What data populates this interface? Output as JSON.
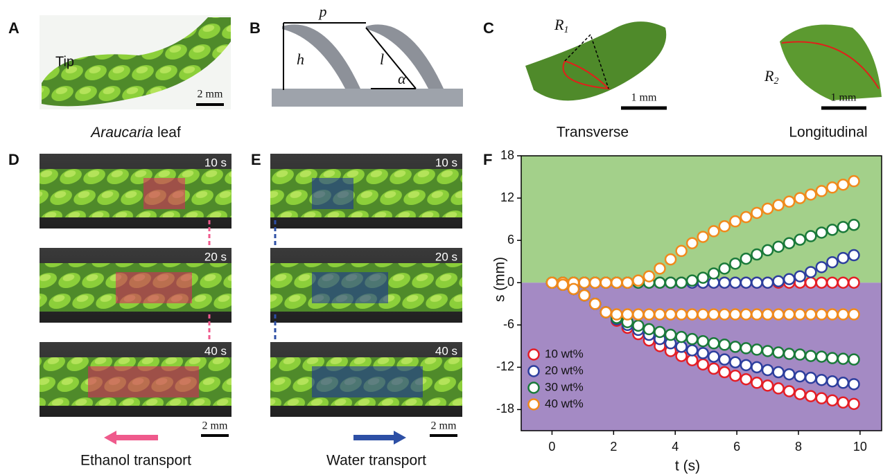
{
  "panels": {
    "A": {
      "letter": "A",
      "tip": "Tip",
      "scale": "2 mm",
      "caption_italic": "Araucaria",
      "caption": "leaf"
    },
    "B": {
      "letter": "B",
      "p": "p",
      "h": "h",
      "l": "l",
      "alpha": "α"
    },
    "C": {
      "letter": "C",
      "r1": "R",
      "r1_sub": "1",
      "r2": "R",
      "r2_sub": "2",
      "scale_left": "1 mm",
      "scale_right": "1 mm",
      "caption_left": "Transverse",
      "caption_right": "Longitudinal"
    },
    "D": {
      "letter": "D",
      "times": [
        "10 s",
        "20 s",
        "40 s"
      ],
      "scale": "2 mm",
      "caption": "Ethanol transport"
    },
    "E": {
      "letter": "E",
      "times": [
        "10 s",
        "20 s",
        "40 s"
      ],
      "scale": "2 mm",
      "caption": "Water transport"
    },
    "F": {
      "letter": "F"
    }
  },
  "chart_data": {
    "type": "scatter",
    "x_label": "t (s)",
    "y_label": "s (mm)",
    "xlim": [
      -1,
      10.7
    ],
    "ylim": [
      -21,
      18
    ],
    "xticks": [
      0,
      2,
      4,
      6,
      8,
      10
    ],
    "yticks": [
      -18,
      -12,
      -6,
      0,
      6,
      12,
      18
    ],
    "upper_color": "#a3d08a",
    "lower_color": "#a48ac4",
    "legend": "lower left",
    "x": [
      0,
      0.35,
      0.7,
      1.05,
      1.4,
      1.75,
      2.1,
      2.45,
      2.8,
      3.15,
      3.5,
      3.85,
      4.2,
      4.55,
      4.9,
      5.25,
      5.6,
      5.95,
      6.3,
      6.65,
      7,
      7.35,
      7.7,
      8.05,
      8.4,
      8.75,
      9.1,
      9.45,
      9.8
    ],
    "series": [
      {
        "name": "10 wt%",
        "color": "#e41e26",
        "branches": [
          {
            "values": [
              0,
              0,
              0,
              0,
              0,
              0,
              0,
              0,
              0,
              0,
              0,
              0,
              0,
              0,
              0,
              0,
              0,
              0,
              0,
              0,
              0,
              0,
              0,
              0,
              0,
              0,
              0,
              0,
              0
            ]
          },
          {
            "values": [
              0,
              -0.3,
              -0.9,
              -1.8,
              -3,
              -4.2,
              -5.4,
              -6.4,
              -7.3,
              -8.2,
              -9,
              -9.7,
              -10.4,
              -11,
              -11.6,
              -12.2,
              -12.7,
              -13.2,
              -13.7,
              -14.2,
              -14.6,
              -15,
              -15.4,
              -15.8,
              -16.1,
              -16.4,
              -16.7,
              -17,
              -17.2
            ]
          }
        ]
      },
      {
        "name": "20 wt%",
        "color": "#2d3f9e",
        "branches": [
          {
            "values": [
              0,
              0,
              0,
              0,
              0,
              0,
              0,
              0,
              0,
              0,
              0,
              0,
              0,
              0,
              0,
              0,
              0,
              0,
              0,
              0,
              0,
              0.2,
              0.5,
              0.9,
              1.5,
              2.2,
              2.9,
              3.5,
              3.9
            ]
          },
          {
            "values": [
              0,
              -0.3,
              -0.9,
              -1.8,
              -3,
              -4.2,
              -5.2,
              -6,
              -6.7,
              -7.4,
              -8,
              -8.6,
              -9.1,
              -9.6,
              -10,
              -10.5,
              -10.9,
              -11.3,
              -11.7,
              -12,
              -12.4,
              -12.7,
              -13,
              -13.3,
              -13.5,
              -13.8,
              -14,
              -14.2,
              -14.4
            ]
          }
        ]
      },
      {
        "name": "30 wt%",
        "color": "#1a7a3a",
        "branches": [
          {
            "values": [
              0,
              0,
              0,
              0,
              0,
              0,
              0,
              0,
              0,
              0,
              0,
              0,
              0,
              0.3,
              0.7,
              1.3,
              2,
              2.7,
              3.4,
              4,
              4.6,
              5.1,
              5.6,
              6.1,
              6.6,
              7.1,
              7.5,
              7.9,
              8.2
            ]
          },
          {
            "values": [
              0,
              -0.3,
              -0.9,
              -1.8,
              -3,
              -4.2,
              -5,
              -5.6,
              -6.1,
              -6.6,
              -7,
              -7.4,
              -7.7,
              -8,
              -8.3,
              -8.6,
              -8.8,
              -9.1,
              -9.3,
              -9.5,
              -9.7,
              -9.9,
              -10.1,
              -10.2,
              -10.4,
              -10.5,
              -10.7,
              -10.8,
              -10.9
            ]
          }
        ]
      },
      {
        "name": "40 wt%",
        "color": "#f08a1c",
        "branches": [
          {
            "values": [
              0,
              0,
              0,
              0,
              0,
              0,
              0,
              0,
              0.3,
              0.9,
              2,
              3.3,
              4.5,
              5.6,
              6.5,
              7.3,
              8,
              8.7,
              9.3,
              9.9,
              10.5,
              11,
              11.5,
              12,
              12.5,
              13,
              13.5,
              13.9,
              14.4
            ]
          },
          {
            "values": [
              0,
              -0.3,
              -0.9,
              -1.8,
              -3,
              -4.2,
              -4.5,
              -4.5,
              -4.5,
              -4.5,
              -4.5,
              -4.5,
              -4.5,
              -4.5,
              -4.5,
              -4.5,
              -4.5,
              -4.5,
              -4.5,
              -4.5,
              -4.5,
              -4.5,
              -4.5,
              -4.5,
              -4.5,
              -4.5,
              -4.5,
              -4.5,
              -4.5
            ]
          }
        ]
      }
    ]
  }
}
